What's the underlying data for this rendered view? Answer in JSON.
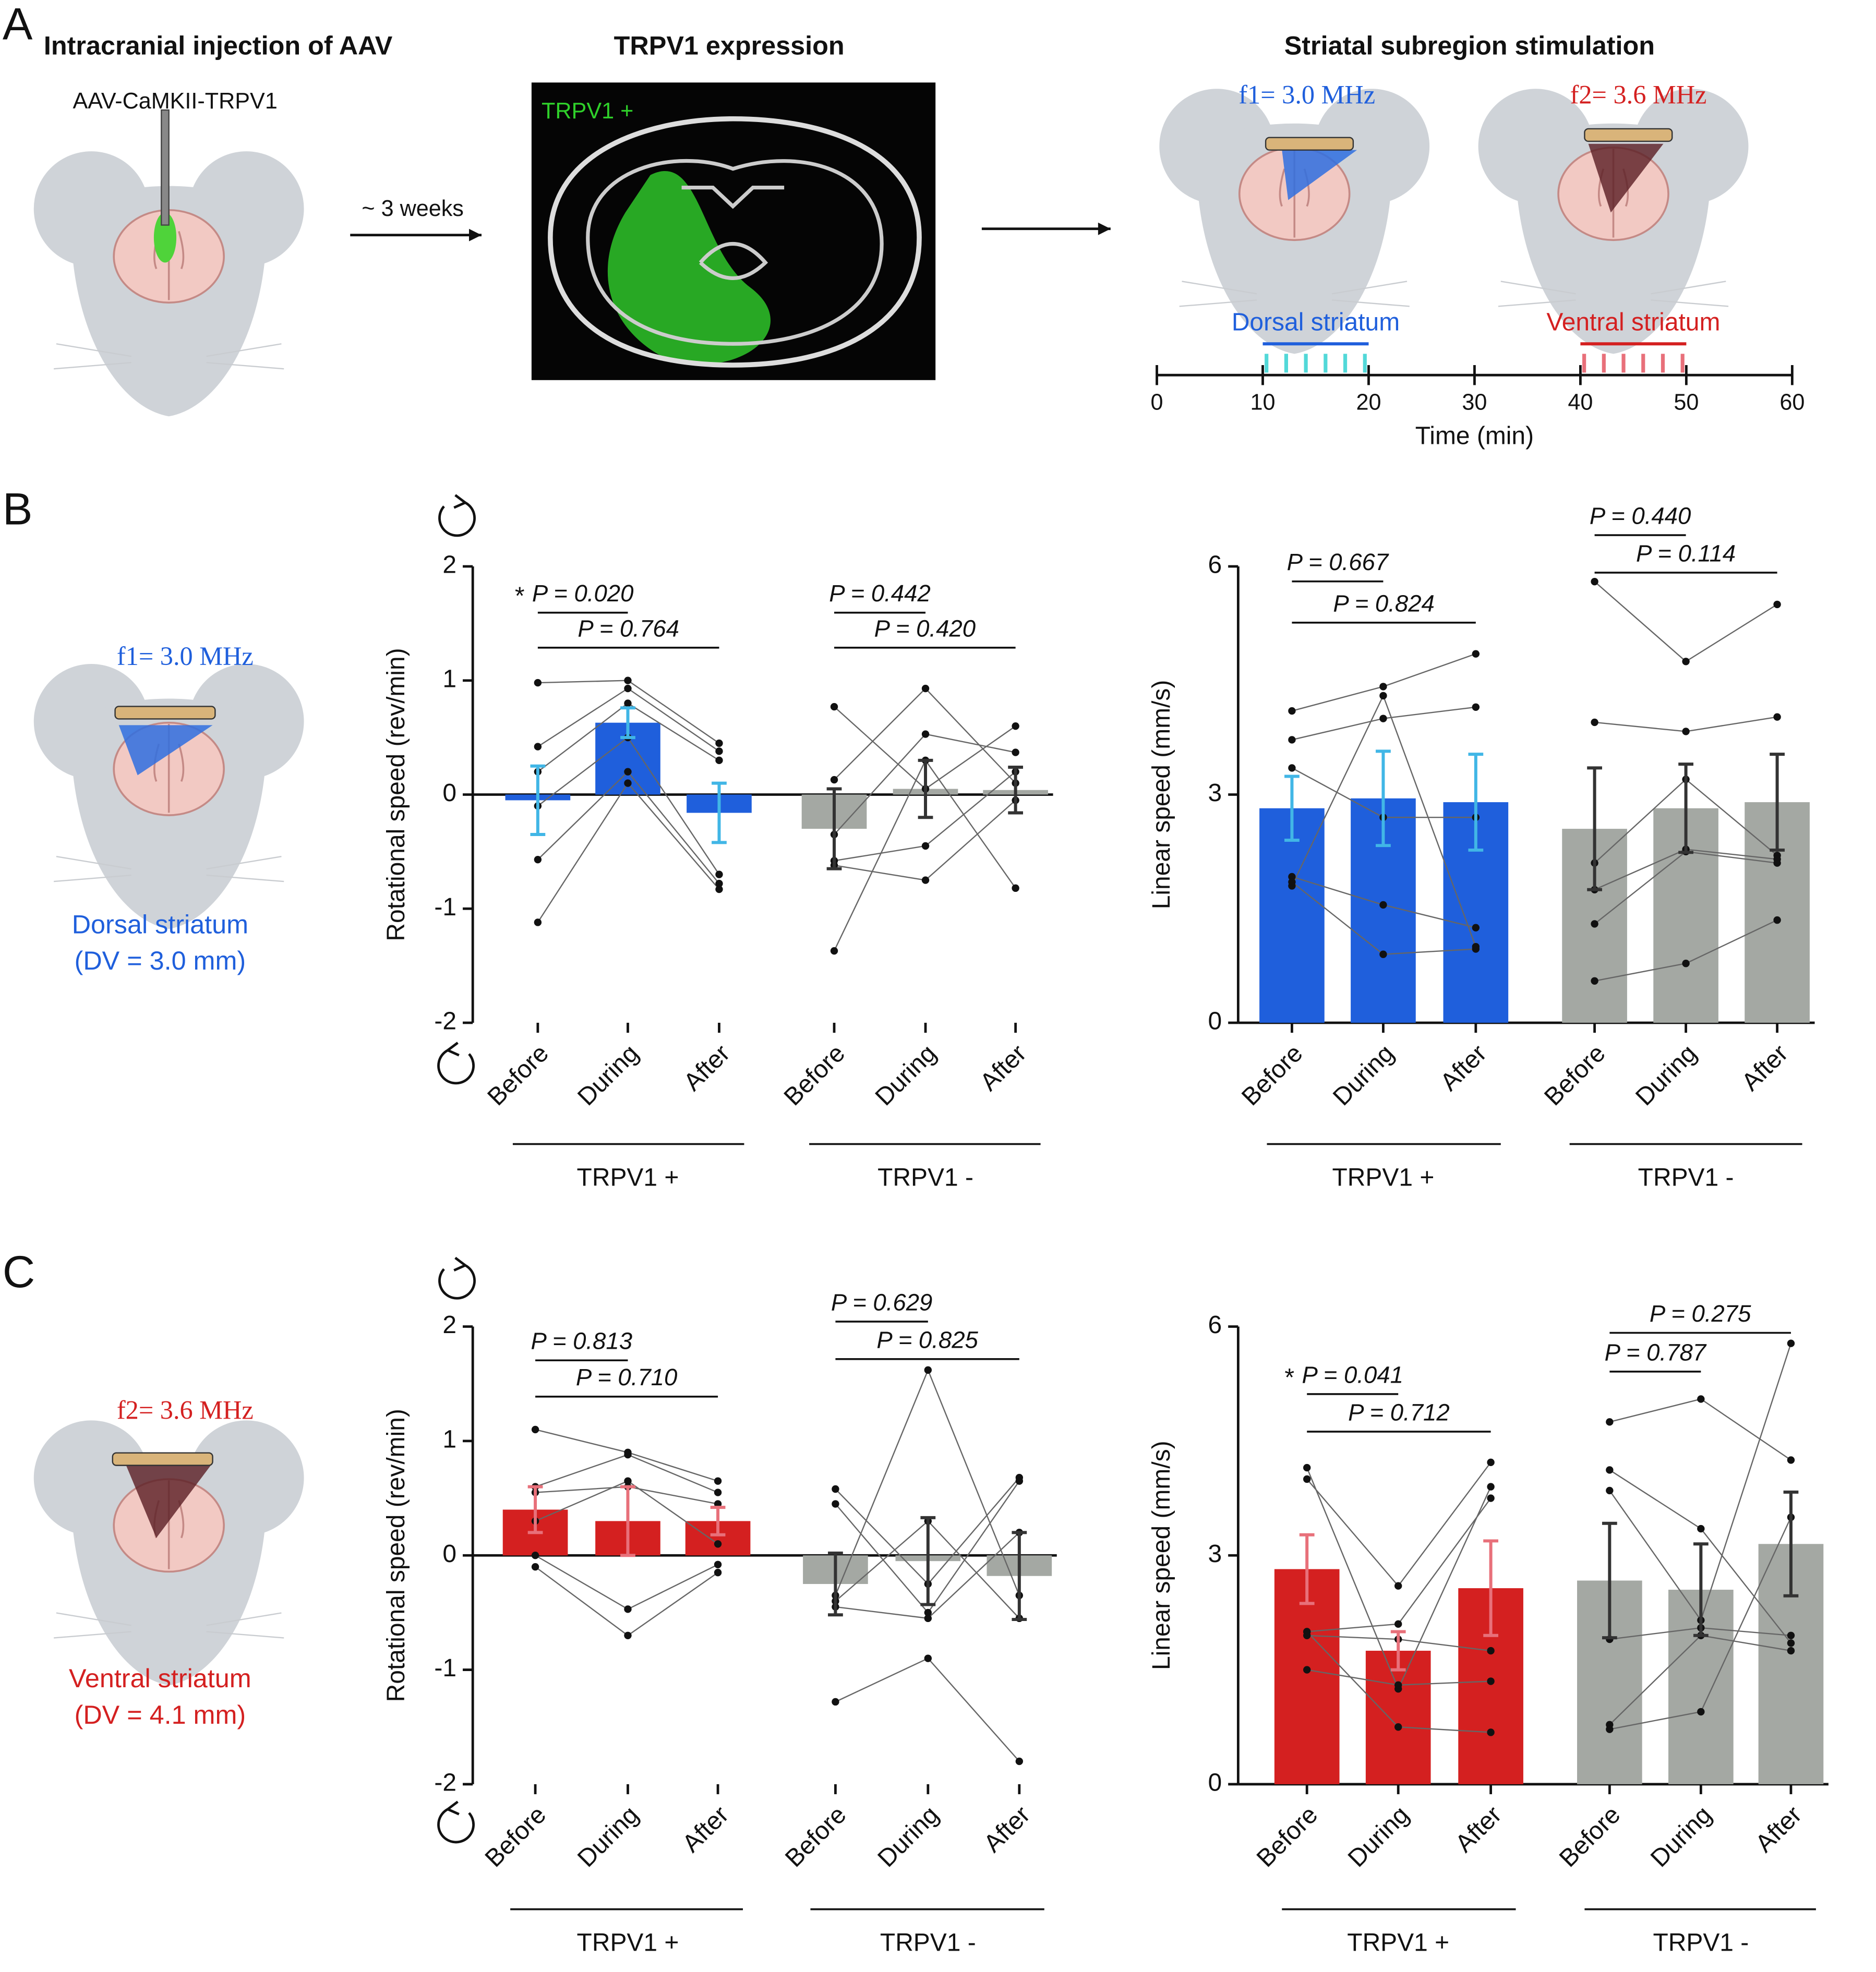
{
  "panel_a": {
    "label": "A",
    "step1_title": "Intracranial injection of AAV",
    "virus": "AAV-CaMKII-TRPV1",
    "delay": "~ 3 weeks",
    "step2_title": "TRPV1 expression",
    "image_label": "TRPV1 +",
    "step3_title": "Striatal subregion stimulation",
    "targets": [
      {
        "freq": "f1= 3.0 MHz",
        "name": "Dorsal striatum",
        "color": "#1f5fdc",
        "window": [
          10,
          20
        ]
      },
      {
        "freq": "f2= 3.6 MHz",
        "name": "Ventral striatum",
        "color": "#d42020",
        "window": [
          40,
          50
        ]
      }
    ],
    "timeline": {
      "xlabel": "Time (min)",
      "xlim": [
        0,
        60
      ],
      "xticks": [
        0,
        10,
        20,
        30,
        40,
        50,
        60
      ]
    }
  },
  "panel_b": {
    "label": "B",
    "freq": "f1= 3.0 MHz",
    "target": "Dorsal striatum",
    "depth": "(DV = 3.0 mm)",
    "color": "#1f5fdc"
  },
  "panel_c": {
    "label": "C",
    "freq": "f2= 3.6 MHz",
    "target": "Ventral striatum",
    "depth": "(DV = 4.1 mm)",
    "color": "#d42020"
  },
  "chart_data": [
    {
      "type": "bar",
      "ylabel": "Rotational speed (rev/min)",
      "ylim": [
        -2,
        2
      ],
      "yticks": [
        -2,
        -1,
        0,
        1,
        2
      ],
      "groups": [
        {
          "name": "TRPV1 +",
          "color": "#1f5fdc",
          "error_color": "#41b6e6",
          "categories": [
            "Before",
            "During",
            "After"
          ],
          "values": [
            -0.05,
            0.63,
            -0.16
          ],
          "errors": [
            0.3,
            0.13,
            0.26
          ],
          "subjects": [
            [
              0.98,
              1.0,
              0.45
            ],
            [
              0.42,
              0.93,
              0.38
            ],
            [
              0.2,
              0.8,
              0.3
            ],
            [
              -0.1,
              0.5,
              -0.7
            ],
            [
              -0.57,
              0.2,
              -0.78
            ],
            [
              -1.12,
              0.1,
              -0.83
            ]
          ],
          "comparisons": [
            {
              "label": "P = 0.020",
              "star": "*"
            },
            {
              "label": "P = 0.764"
            }
          ]
        },
        {
          "name": "TRPV1 -",
          "color": "#a4a8a3",
          "error_color": "#333333",
          "categories": [
            "Before",
            "During",
            "After"
          ],
          "values": [
            -0.3,
            0.05,
            0.04
          ],
          "errors": [
            0.35,
            0.25,
            0.2
          ],
          "subjects": [
            [
              0.77,
              0.05,
              0.6
            ],
            [
              0.13,
              0.93,
              0.1
            ],
            [
              -0.35,
              0.53,
              0.37
            ],
            [
              -0.58,
              -0.45,
              0.2
            ],
            [
              -0.62,
              -0.75,
              -0.05
            ],
            [
              -1.37,
              0.3,
              -0.82
            ]
          ],
          "comparisons": [
            {
              "label": "P = 0.442"
            },
            {
              "label": "P = 0.420"
            }
          ]
        }
      ]
    },
    {
      "type": "bar",
      "ylabel": "Linear speed (mm/s)",
      "ylim": [
        0,
        6
      ],
      "yticks": [
        0,
        3,
        6
      ],
      "groups": [
        {
          "name": "TRPV1 +",
          "color": "#1f5fdc",
          "error_color": "#41b6e6",
          "categories": [
            "Before",
            "During",
            "After"
          ],
          "values": [
            2.82,
            2.95,
            2.9
          ],
          "errors": [
            0.42,
            0.62,
            0.63
          ],
          "subjects": [
            [
              4.1,
              4.42,
              4.85
            ],
            [
              3.72,
              4.0,
              4.15
            ],
            [
              3.35,
              2.7,
              2.7
            ],
            [
              1.92,
              1.55,
              1.25
            ],
            [
              1.85,
              0.9,
              0.97
            ],
            [
              1.8,
              4.3,
              1.0
            ]
          ],
          "comparisons": [
            {
              "label": "P = 0.667"
            },
            {
              "label": "P = 0.824"
            }
          ]
        },
        {
          "name": "TRPV1 -",
          "color": "#a4a8a3",
          "error_color": "#333333",
          "categories": [
            "Before",
            "During",
            "After"
          ],
          "values": [
            2.55,
            2.82,
            2.9
          ],
          "errors": [
            0.8,
            0.58,
            0.63
          ],
          "subjects": [
            [
              5.8,
              4.75,
              5.5
            ],
            [
              3.95,
              3.83,
              4.02
            ],
            [
              2.1,
              3.2,
              2.2
            ],
            [
              1.75,
              2.28,
              2.15
            ],
            [
              1.3,
              2.25,
              2.1
            ],
            [
              0.55,
              0.78,
              1.35
            ]
          ],
          "comparisons": [
            {
              "label": "P = 0.440"
            },
            {
              "label": "P = 0.114"
            }
          ]
        }
      ]
    },
    {
      "type": "bar",
      "ylabel": "Rotational speed (rev/min)",
      "ylim": [
        -2,
        2
      ],
      "yticks": [
        -2,
        -1,
        0,
        1,
        2
      ],
      "groups": [
        {
          "name": "TRPV1 +",
          "color": "#d42020",
          "error_color": "#e8707a",
          "categories": [
            "Before",
            "During",
            "After"
          ],
          "values": [
            0.4,
            0.3,
            0.3
          ],
          "errors": [
            0.2,
            0.3,
            0.12
          ],
          "subjects": [
            [
              1.1,
              0.9,
              0.65
            ],
            [
              0.6,
              0.88,
              0.55
            ],
            [
              0.55,
              0.6,
              0.45
            ],
            [
              0.3,
              0.65,
              0.1
            ],
            [
              0.0,
              -0.47,
              -0.08
            ],
            [
              -0.1,
              -0.7,
              -0.15
            ]
          ],
          "comparisons": [
            {
              "label": "P = 0.813"
            },
            {
              "label": "P = 0.710"
            }
          ]
        },
        {
          "name": "TRPV1 -",
          "color": "#a4a8a3",
          "error_color": "#333333",
          "categories": [
            "Before",
            "During",
            "After"
          ],
          "values": [
            -0.25,
            -0.05,
            -0.18
          ],
          "errors": [
            0.27,
            0.38,
            0.38
          ],
          "subjects": [
            [
              0.58,
              -0.25,
              0.68
            ],
            [
              0.45,
              -0.5,
              0.65
            ],
            [
              -0.35,
              1.62,
              -0.35
            ],
            [
              -0.4,
              0.3,
              -0.55
            ],
            [
              -0.45,
              -0.55,
              0.2
            ],
            [
              -1.28,
              -0.9,
              -1.8
            ]
          ],
          "comparisons": [
            {
              "label": "P = 0.629"
            },
            {
              "label": "P = 0.825"
            }
          ]
        }
      ]
    },
    {
      "type": "bar",
      "ylabel": "Linear speed (mm/s)",
      "ylim": [
        0,
        6
      ],
      "yticks": [
        0,
        3,
        6
      ],
      "groups": [
        {
          "name": "TRPV1 +",
          "color": "#d42020",
          "error_color": "#e8707a",
          "categories": [
            "Before",
            "During",
            "After"
          ],
          "values": [
            2.82,
            1.75,
            2.57
          ],
          "errors": [
            0.45,
            0.25,
            0.62
          ],
          "subjects": [
            [
              4.15,
              1.25,
              3.9
            ],
            [
              4.0,
              2.6,
              4.22
            ],
            [
              2.0,
              2.1,
              3.75
            ],
            [
              1.95,
              1.9,
              1.75
            ],
            [
              1.5,
              1.3,
              1.35
            ],
            [
              2.0,
              0.75,
              0.68
            ]
          ],
          "comparisons": [
            {
              "label": "P = 0.041",
              "star": "*"
            },
            {
              "label": "P = 0.712"
            }
          ]
        },
        {
          "name": "TRPV1 -",
          "color": "#a4a8a3",
          "error_color": "#333333",
          "categories": [
            "Before",
            "During",
            "After"
          ],
          "values": [
            2.67,
            2.55,
            3.15
          ],
          "errors": [
            0.75,
            0.6,
            0.68
          ],
          "subjects": [
            [
              4.75,
              5.05,
              4.25
            ],
            [
              4.12,
              3.35,
              1.85
            ],
            [
              3.85,
              2.15,
              5.78
            ],
            [
              1.9,
              2.05,
              1.95
            ],
            [
              0.78,
              1.95,
              1.75
            ],
            [
              0.72,
              0.95,
              3.5
            ]
          ],
          "comparisons": [
            {
              "label": "P = 0.275"
            },
            {
              "label": "P = 0.787"
            }
          ]
        }
      ]
    }
  ]
}
